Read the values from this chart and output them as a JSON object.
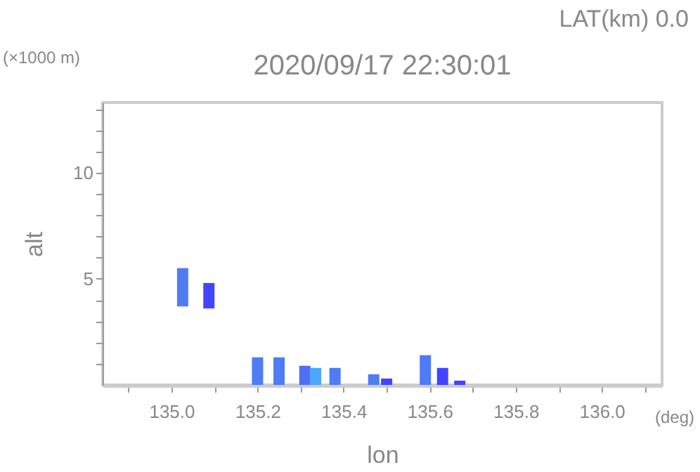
{
  "chart_data": {
    "type": "bar",
    "title": "2020/09/17 22:30:01",
    "xlabel": "lon",
    "ylabel": "alt",
    "annotations": [
      "LAT(km) 0.0",
      "(×1000 m)",
      "(deg)"
    ],
    "x": [
      135.026,
      135.087,
      135.2,
      135.25,
      135.31,
      135.335,
      135.38,
      135.47,
      135.5,
      135.59,
      135.63,
      135.67
    ],
    "base": [
      3.7,
      3.6,
      0,
      0,
      0,
      0,
      0,
      0,
      0,
      0,
      0,
      0
    ],
    "values": [
      1.8,
      1.2,
      1.3,
      1.3,
      0.9,
      0.8,
      0.8,
      0.5,
      0.3,
      1.4,
      0.8,
      0.2
    ],
    "colors": [
      "#4f7bf5",
      "#4444ff",
      "#4f7bf5",
      "#4f7bf5",
      "#4f6ef5",
      "#4da6ff",
      "#4f7bf5",
      "#4f7bf5",
      "#4444ff",
      "#4f7bf5",
      "#4444ff",
      "#4444ff"
    ],
    "xlim": [
      134.84,
      136.14
    ],
    "ylim": [
      0,
      13.3
    ],
    "xticks": [
      {
        "value": 134.9,
        "label": null
      },
      {
        "value": 135,
        "label": "135.0"
      },
      {
        "value": 135.1,
        "label": null
      },
      {
        "value": 135.2,
        "label": "135.2"
      },
      {
        "value": 135.3,
        "label": null
      },
      {
        "value": 135.4,
        "label": "135.4"
      },
      {
        "value": 135.5,
        "label": null
      },
      {
        "value": 135.6,
        "label": "135.6"
      },
      {
        "value": 135.7,
        "label": null
      },
      {
        "value": 135.8,
        "label": "135.8"
      },
      {
        "value": 135.9,
        "label": null
      },
      {
        "value": 136,
        "label": "136.0"
      },
      {
        "value": 136.1,
        "label": null
      }
    ],
    "yticks": [
      {
        "value": 1,
        "label": null
      },
      {
        "value": 2,
        "label": null
      },
      {
        "value": 3,
        "label": null
      },
      {
        "value": 4,
        "label": null
      },
      5,
      {
        "value": 6,
        "label": null
      },
      {
        "value": 7,
        "label": null
      },
      {
        "value": 8,
        "label": null
      },
      {
        "value": 9,
        "label": null
      },
      10,
      {
        "value": 11,
        "label": null
      },
      {
        "value": 12,
        "label": null
      },
      {
        "value": 13,
        "label": null
      }
    ]
  }
}
